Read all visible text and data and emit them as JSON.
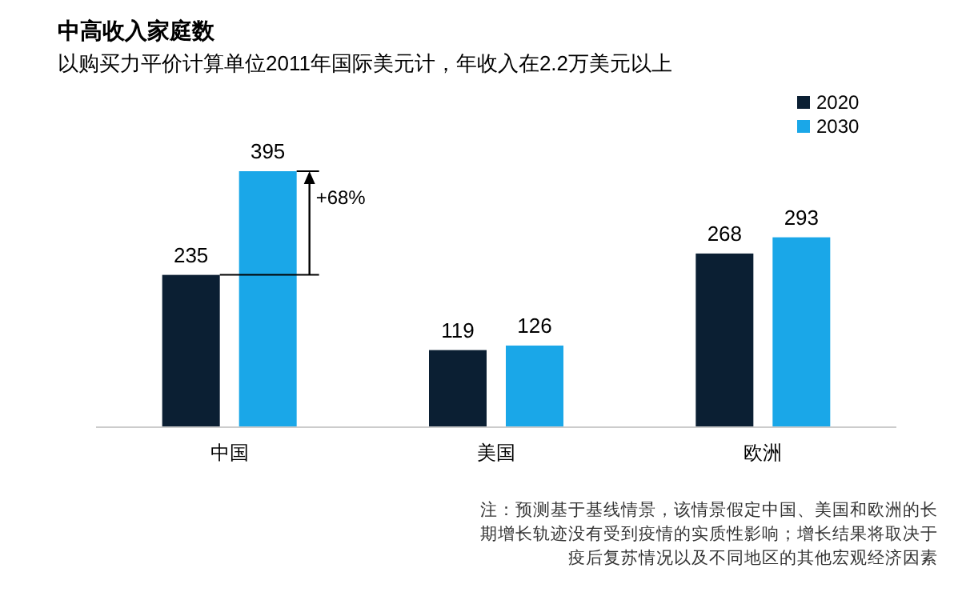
{
  "chart_data": {
    "type": "bar",
    "title": "中高收入家庭数",
    "subtitle": "以购买力平价计算单位2011年国际美元计，年收入在2.2万美元以上",
    "categories": [
      "中国",
      "美国",
      "欧洲"
    ],
    "series": [
      {
        "name": "2020",
        "color": "#0b1f33",
        "values": [
          235,
          119,
          268
        ]
      },
      {
        "name": "2030",
        "color": "#1aa7e8",
        "values": [
          395,
          126,
          293
        ]
      }
    ],
    "data_labels": true,
    "legend": "top right",
    "annotations": [
      "+68%",
      "注：预测基于基线情景，该情景假定中国、美国和欧洲的长期增长轨迹没有受到疫情的实质性影响；增长结果将取决于疫后复苏情况以及不同地区的其他宏观经济因素"
    ]
  }
}
